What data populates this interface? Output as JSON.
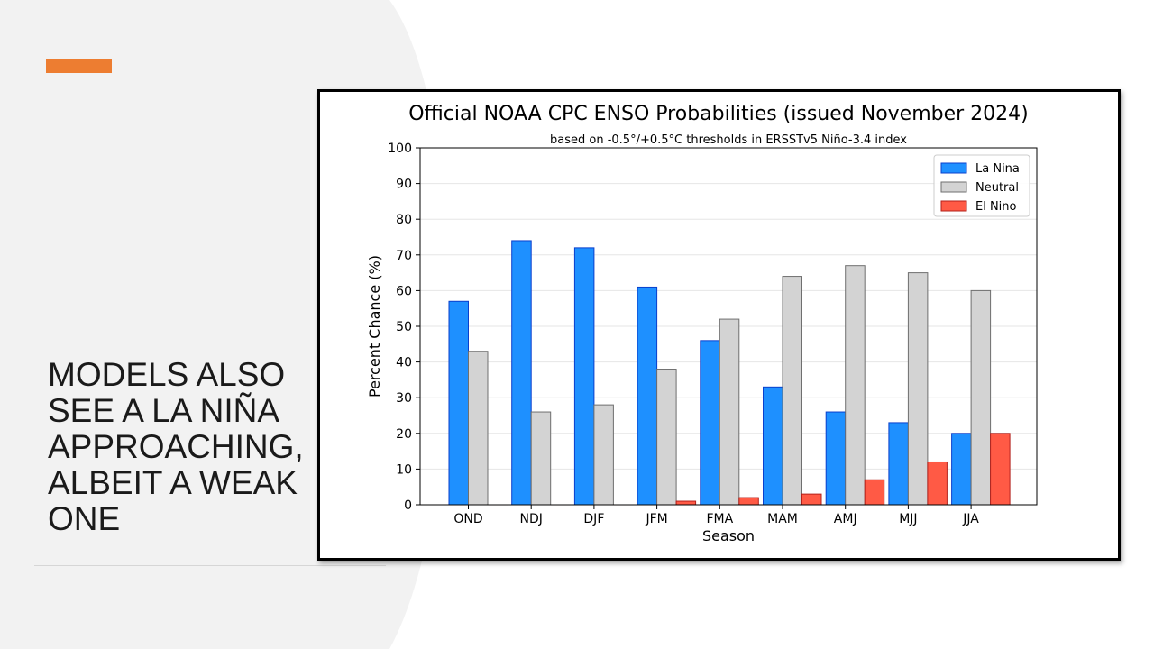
{
  "slide": {
    "title": "MODELS ALSO SEE A LA NIÑA APPROACHING, ALBEIT A WEAK ONE"
  },
  "colors": {
    "accent": "#ED7D31",
    "background_curve": "#f2f2f2",
    "la_nina": "#1E90FF",
    "la_nina_edge": "#0A3FCC",
    "neutral": "#D3D3D3",
    "neutral_edge": "#6f6f6f",
    "el_nino": "#FF5A45",
    "el_nino_edge": "#B3201A",
    "grid": "#e6e6e6"
  },
  "chart_data": {
    "type": "bar",
    "title": "Official NOAA CPC ENSO Probabilities (issued November 2024)",
    "subtitle": "based on -0.5°/+0.5°C thresholds in ERSSTv5 Niño-3.4 index",
    "xlabel": "Season",
    "ylabel": "Percent Chance (%)",
    "ylim": [
      0,
      100
    ],
    "yticks": [
      0,
      10,
      20,
      30,
      40,
      50,
      60,
      70,
      80,
      90,
      100
    ],
    "grid": true,
    "legend_position": "top-right",
    "categories": [
      "OND",
      "NDJ",
      "DJF",
      "JFM",
      "FMA",
      "MAM",
      "AMJ",
      "MJJ",
      "JJA"
    ],
    "series": [
      {
        "name": "La Nina",
        "color_key": "la_nina",
        "values": [
          57,
          74,
          72,
          61,
          46,
          33,
          26,
          23,
          20
        ]
      },
      {
        "name": "Neutral",
        "color_key": "neutral",
        "values": [
          43,
          26,
          28,
          38,
          52,
          64,
          67,
          65,
          60
        ]
      },
      {
        "name": "El Nino",
        "color_key": "el_nino",
        "values": [
          0,
          0,
          0,
          1,
          2,
          3,
          7,
          12,
          20
        ]
      }
    ]
  }
}
